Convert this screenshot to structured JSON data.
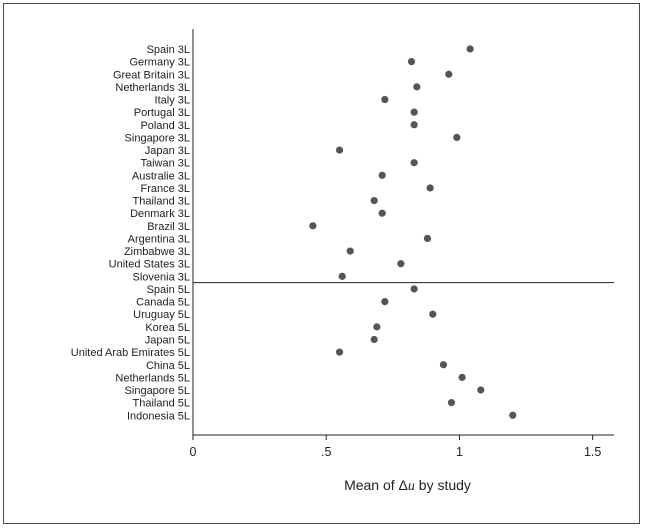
{
  "chart_data": {
    "type": "scatter",
    "xlabel": "Mean of Δ u by study",
    "xlabel_parts": {
      "prefix": "Mean of ",
      "symbol": "Δ",
      "var": "u",
      "suffix": " by study"
    },
    "xlim": [
      0,
      1.58
    ],
    "x_ticks": [
      0,
      0.5,
      1,
      1.5
    ],
    "x_tick_labels": [
      "0",
      ".5",
      "1",
      "1.5"
    ],
    "grid": false,
    "legend": "none",
    "separator_after": "Slovenia 3L",
    "marker_color": "#555555",
    "points": [
      {
        "label": "Spain 3L",
        "value": 1.04
      },
      {
        "label": "Germany 3L",
        "value": 0.82
      },
      {
        "label": "Great Britain 3L",
        "value": 0.96
      },
      {
        "label": "Netherlands 3L",
        "value": 0.84
      },
      {
        "label": "Italy 3L",
        "value": 0.72
      },
      {
        "label": "Portugal 3L",
        "value": 0.83
      },
      {
        "label": "Poland 3L",
        "value": 0.83
      },
      {
        "label": "Singapore 3L",
        "value": 0.99
      },
      {
        "label": "Japan 3L",
        "value": 0.55
      },
      {
        "label": "Taiwan 3L",
        "value": 0.83
      },
      {
        "label": "Australie 3L",
        "value": 0.71
      },
      {
        "label": "France 3L",
        "value": 0.89
      },
      {
        "label": "Thailand 3L",
        "value": 0.68
      },
      {
        "label": "Denmark 3L",
        "value": 0.71
      },
      {
        "label": "Brazil 3L",
        "value": 0.45
      },
      {
        "label": "Argentina 3L",
        "value": 0.88
      },
      {
        "label": "Zimbabwe 3L",
        "value": 0.59
      },
      {
        "label": "United States 3L",
        "value": 0.78
      },
      {
        "label": "Slovenia 3L",
        "value": 0.56
      },
      {
        "label": "Spain 5L",
        "value": 0.83
      },
      {
        "label": "Canada 5L",
        "value": 0.72
      },
      {
        "label": "Uruguay 5L",
        "value": 0.9
      },
      {
        "label": "Korea 5L",
        "value": 0.69
      },
      {
        "label": "Japan 5L",
        "value": 0.68
      },
      {
        "label": "United Arab Emirates 5L",
        "value": 0.55
      },
      {
        "label": "China 5L",
        "value": 0.94
      },
      {
        "label": "Netherlands 5L",
        "value": 1.01
      },
      {
        "label": "Singapore 5L",
        "value": 1.08
      },
      {
        "label": "Thailand 5L",
        "value": 0.97
      },
      {
        "label": "Indonesia 5L",
        "value": 1.2
      }
    ]
  }
}
